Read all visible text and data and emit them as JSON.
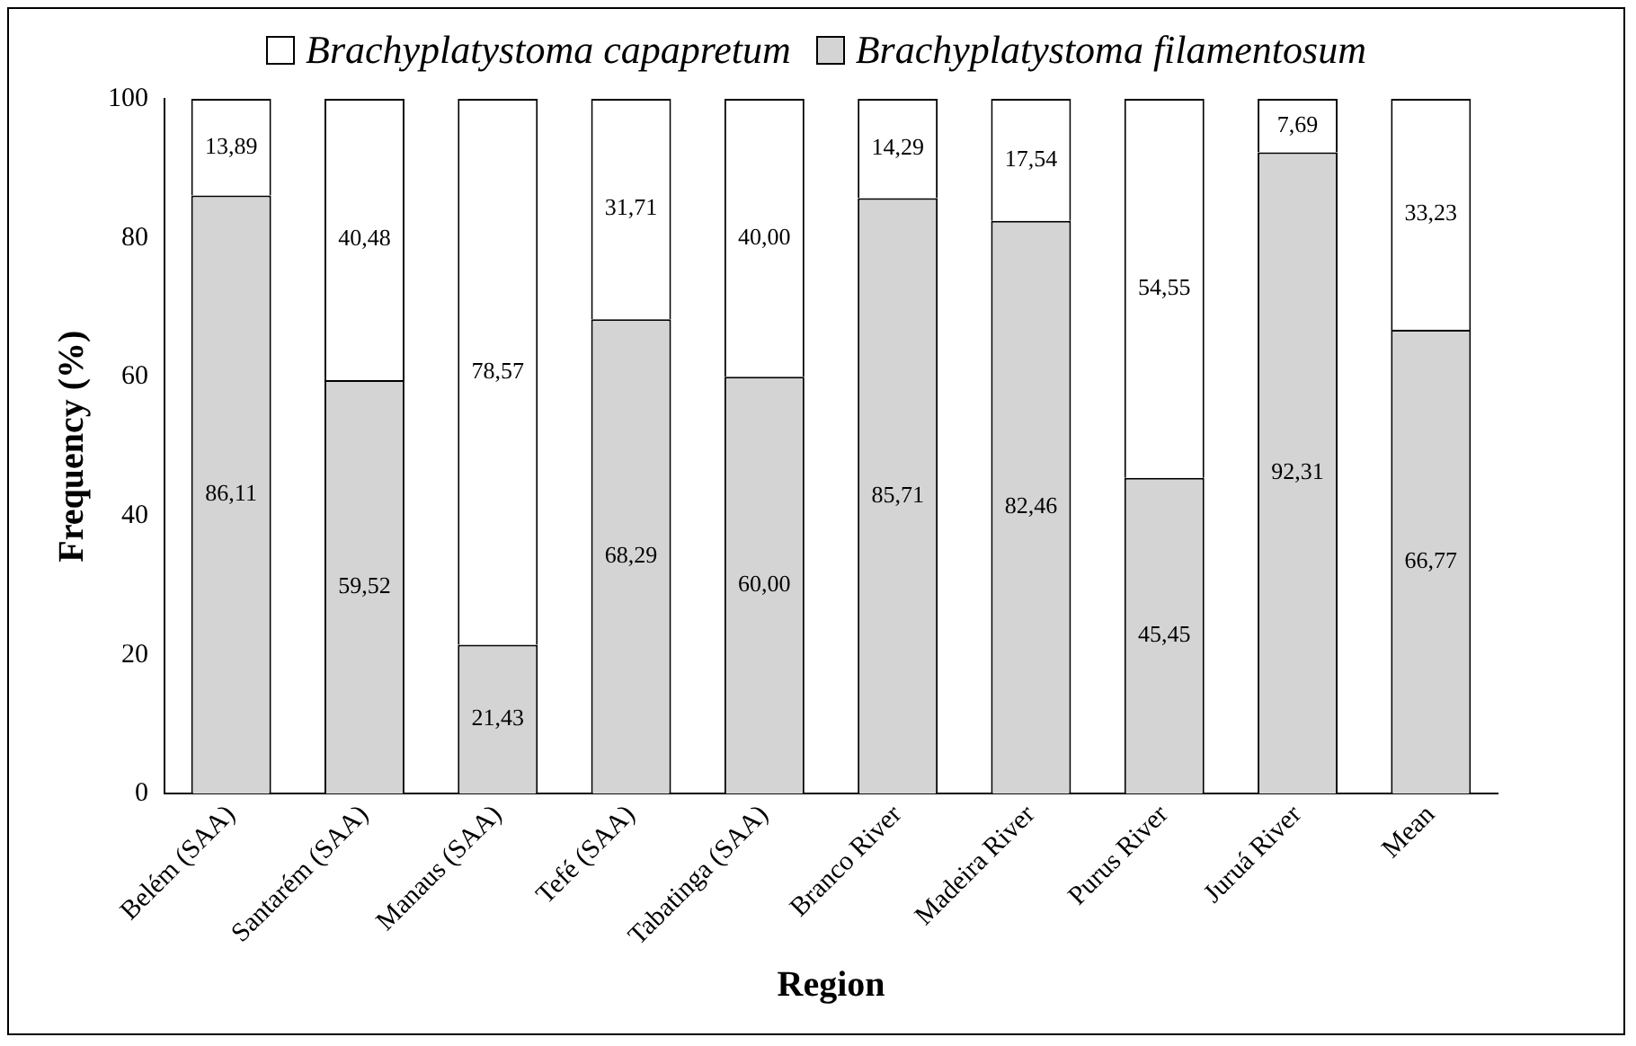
{
  "chart_data": {
    "type": "bar",
    "stacked": true,
    "xlabel": "Region",
    "ylabel": "Frequency (%)",
    "categories": [
      "Belém (SAA)",
      "Santarém (SAA)",
      "Manaus (SAA)",
      "Tefé (SAA)",
      "Tabatinga (SAA)",
      "Branco River",
      "Madeira River",
      "Purus River",
      "Juruá River",
      "Mean"
    ],
    "series": [
      {
        "name": "Brachyplatystoma filamentosum",
        "color": "#d4d4d4",
        "values": [
          86.11,
          59.52,
          21.43,
          68.29,
          60.0,
          85.71,
          82.46,
          45.45,
          92.31,
          66.77
        ],
        "value_labels": [
          "86,11",
          "59,52",
          "21,43",
          "68,29",
          "60,00",
          "85,71",
          "82,46",
          "45,45",
          "92,31",
          "66,77"
        ]
      },
      {
        "name": "Brachyplatystoma capapretum",
        "color": "#ffffff",
        "values": [
          13.89,
          40.48,
          78.57,
          31.71,
          40.0,
          14.29,
          17.54,
          54.55,
          7.69,
          33.23
        ],
        "value_labels": [
          "13,89",
          "40,48",
          "78,57",
          "31,71",
          "40,00",
          "14,29",
          "17,54",
          "54,55",
          "7,69",
          "33,23"
        ]
      }
    ],
    "ylim": [
      0,
      100
    ],
    "yticks": [
      0,
      20,
      40,
      60,
      80,
      100
    ],
    "grid": false,
    "legend": "top"
  }
}
